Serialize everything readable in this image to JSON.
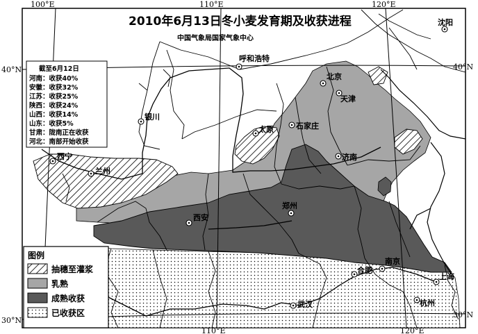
{
  "title": "2010年6月13日冬小麦发育期及收获进程",
  "subtitle": "中国气象局国家气象中心",
  "coords": {
    "top": [
      "100°E",
      "110°E",
      "120°E"
    ],
    "bottom": [
      "110°E",
      "120°E"
    ],
    "left": [
      "40°N",
      "30°N"
    ],
    "right": [
      "40°N",
      "30°N"
    ]
  },
  "cities": [
    {
      "id": "shenyang",
      "name": "沈阳"
    },
    {
      "id": "huhehaote",
      "name": "呼和浩特"
    },
    {
      "id": "beijing",
      "name": "北京"
    },
    {
      "id": "tianjin",
      "name": "天津"
    },
    {
      "id": "yinchuan",
      "name": "银川"
    },
    {
      "id": "taiyuan",
      "name": "太原"
    },
    {
      "id": "shijiazhuang",
      "name": "石家庄"
    },
    {
      "id": "xining",
      "name": "西宁"
    },
    {
      "id": "lanzhou",
      "name": "兰州"
    },
    {
      "id": "jinan",
      "name": "济南"
    },
    {
      "id": "zhengzhou",
      "name": "郑州"
    },
    {
      "id": "xian",
      "name": "西安"
    },
    {
      "id": "hefei",
      "name": "合肥"
    },
    {
      "id": "nanjing",
      "name": "南京"
    },
    {
      "id": "shanghai",
      "name": "上海"
    },
    {
      "id": "wuhan",
      "name": "武汉"
    },
    {
      "id": "hangzhou",
      "name": "杭州"
    }
  ],
  "status_box": {
    "header": "截至6月12日",
    "lines": [
      "河南：收获40%",
      "安徽：收获32%",
      "江苏：收获25%",
      "陕西：收获24%",
      "山西：收获14%",
      "山东：收获5%",
      "甘肃：陇南正在收获",
      "河北：南部开始收获"
    ]
  },
  "legend": {
    "title": "图例",
    "items": [
      {
        "label": "抽穗至灌浆",
        "pattern": "hatch"
      },
      {
        "label": "乳熟",
        "color": "#a6a6a6"
      },
      {
        "label": "成熟收获",
        "color": "#595959"
      },
      {
        "label": "已收获区",
        "pattern": "dots"
      }
    ]
  }
}
